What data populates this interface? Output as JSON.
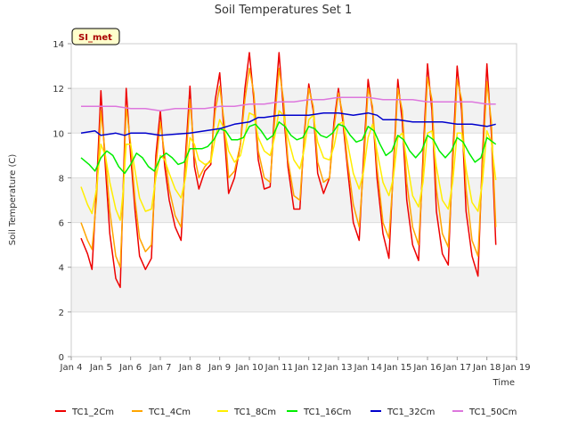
{
  "chart_data": {
    "type": "line",
    "title": "Soil Temperatures Set 1",
    "xlabel": "Time",
    "ylabel": "Soil Temperature (C)",
    "xlim": [
      4.0,
      19.0
    ],
    "ylim": [
      0,
      14
    ],
    "x_ticks": [
      4,
      5,
      6,
      7,
      8,
      9,
      10,
      11,
      12,
      13,
      14,
      15,
      16,
      17,
      18,
      19
    ],
    "x_tick_labels": [
      "Jan 4",
      "Jan 5",
      "Jan 6",
      "Jan 7",
      "Jan 8",
      "Jan 9",
      "Jan 10",
      "Jan 11",
      "Jan 12",
      "Jan 13",
      "Jan 14",
      "Jan 15",
      "Jan 16",
      "Jan 17",
      "Jan 18",
      "Jan 19"
    ],
    "y_ticks": [
      0,
      2,
      4,
      6,
      8,
      10,
      12,
      14
    ],
    "y_tick_labels": [
      "0",
      "2",
      "4",
      "6",
      "8",
      "10",
      "12",
      "14"
    ],
    "grid": "horizontal bands",
    "legend_placement": "bottom",
    "station_label": "SI_met",
    "series": [
      {
        "name": "TC1_2Cm",
        "color": "#ee0000",
        "x": [
          4.33,
          4.55,
          4.7,
          4.85,
          5.0,
          5.15,
          5.3,
          5.5,
          5.65,
          5.75,
          5.85,
          6.0,
          6.15,
          6.3,
          6.5,
          6.7,
          6.85,
          7.0,
          7.15,
          7.3,
          7.5,
          7.7,
          7.85,
          8.0,
          8.15,
          8.3,
          8.5,
          8.7,
          8.85,
          9.0,
          9.15,
          9.3,
          9.5,
          9.7,
          9.85,
          10.0,
          10.15,
          10.3,
          10.5,
          10.7,
          10.85,
          11.0,
          11.15,
          11.3,
          11.5,
          11.7,
          11.85,
          12.0,
          12.15,
          12.3,
          12.5,
          12.7,
          12.85,
          13.0,
          13.15,
          13.3,
          13.5,
          13.7,
          13.85,
          14.0,
          14.15,
          14.3,
          14.5,
          14.7,
          14.85,
          15.0,
          15.15,
          15.3,
          15.5,
          15.7,
          15.85,
          16.0,
          16.15,
          16.3,
          16.5,
          16.7,
          16.85,
          17.0,
          17.15,
          17.3,
          17.5,
          17.7,
          17.85,
          18.0,
          18.15,
          18.3
        ],
        "y": [
          5.3,
          4.6,
          3.9,
          7.5,
          11.9,
          8.5,
          5.5,
          3.5,
          3.1,
          7.5,
          12.0,
          9.0,
          6.5,
          4.5,
          3.9,
          4.4,
          9.0,
          11.0,
          8.5,
          7.0,
          5.8,
          5.2,
          9.0,
          12.1,
          8.5,
          7.5,
          8.3,
          8.6,
          11.5,
          12.7,
          10.0,
          7.3,
          8.0,
          9.5,
          12.0,
          13.6,
          11.5,
          8.8,
          7.5,
          7.6,
          11.0,
          13.6,
          11.0,
          8.5,
          6.6,
          6.6,
          10.0,
          12.2,
          11.0,
          8.2,
          7.3,
          8.0,
          10.5,
          12.0,
          10.5,
          8.5,
          6.0,
          5.2,
          9.0,
          12.4,
          11.0,
          8.0,
          5.5,
          4.4,
          8.5,
          12.4,
          10.5,
          7.0,
          5.0,
          4.3,
          9.0,
          13.1,
          11.0,
          6.5,
          4.6,
          4.1,
          9.0,
          13.0,
          11.0,
          6.5,
          4.5,
          3.6,
          9.0,
          13.1,
          10.0,
          5.0
        ]
      },
      {
        "name": "TC1_4Cm",
        "color": "#ffa500",
        "x": [
          4.33,
          4.55,
          4.7,
          4.85,
          5.0,
          5.15,
          5.3,
          5.5,
          5.65,
          5.75,
          5.85,
          6.0,
          6.15,
          6.3,
          6.5,
          6.7,
          6.85,
          7.0,
          7.15,
          7.3,
          7.5,
          7.7,
          7.85,
          8.0,
          8.15,
          8.3,
          8.5,
          8.7,
          8.85,
          9.0,
          9.15,
          9.3,
          9.5,
          9.7,
          9.85,
          10.0,
          10.15,
          10.3,
          10.5,
          10.7,
          10.85,
          11.0,
          11.15,
          11.3,
          11.5,
          11.7,
          11.85,
          12.0,
          12.15,
          12.3,
          12.5,
          12.7,
          12.85,
          13.0,
          13.15,
          13.3,
          13.5,
          13.7,
          13.85,
          14.0,
          14.15,
          14.3,
          14.5,
          14.7,
          14.85,
          15.0,
          15.15,
          15.3,
          15.5,
          15.7,
          15.85,
          16.0,
          16.15,
          16.3,
          16.5,
          16.7,
          16.85,
          17.0,
          17.15,
          17.3,
          17.5,
          17.7,
          17.85,
          18.0,
          18.15,
          18.3
        ],
        "y": [
          6.0,
          5.2,
          4.8,
          7.0,
          11.0,
          9.0,
          6.5,
          4.5,
          4.0,
          7.0,
          11.2,
          9.5,
          7.0,
          5.3,
          4.7,
          5.0,
          8.5,
          10.5,
          9.0,
          7.5,
          6.3,
          5.8,
          8.5,
          11.5,
          9.0,
          8.0,
          8.5,
          8.8,
          11.0,
          12.1,
          10.5,
          8.0,
          8.3,
          9.5,
          11.5,
          12.9,
          11.8,
          9.2,
          8.0,
          7.8,
          10.5,
          12.9,
          11.5,
          8.8,
          7.2,
          7.0,
          9.8,
          12.0,
          11.2,
          8.7,
          7.8,
          8.0,
          10.2,
          11.8,
          10.8,
          8.8,
          6.8,
          5.8,
          8.5,
          12.0,
          11.2,
          8.5,
          6.0,
          5.3,
          8.2,
          12.0,
          11.0,
          7.8,
          5.8,
          5.0,
          8.5,
          12.5,
          11.5,
          7.5,
          5.5,
          4.9,
          8.5,
          12.4,
          11.5,
          7.5,
          5.2,
          4.5,
          8.5,
          12.3,
          10.5,
          5.8
        ]
      },
      {
        "name": "TC1_8Cm",
        "color": "#ffee00",
        "x": [
          4.33,
          4.55,
          4.7,
          4.85,
          5.0,
          5.15,
          5.3,
          5.5,
          5.65,
          5.75,
          5.85,
          6.0,
          6.15,
          6.3,
          6.5,
          6.7,
          6.85,
          7.0,
          7.15,
          7.3,
          7.5,
          7.7,
          7.85,
          8.0,
          8.15,
          8.3,
          8.5,
          8.7,
          8.85,
          9.0,
          9.15,
          9.3,
          9.5,
          9.7,
          9.85,
          10.0,
          10.15,
          10.3,
          10.5,
          10.7,
          10.85,
          11.0,
          11.15,
          11.3,
          11.5,
          11.7,
          11.85,
          12.0,
          12.15,
          12.3,
          12.5,
          12.7,
          12.85,
          13.0,
          13.15,
          13.3,
          13.5,
          13.7,
          13.85,
          14.0,
          14.15,
          14.3,
          14.5,
          14.7,
          14.85,
          15.0,
          15.15,
          15.3,
          15.5,
          15.7,
          15.85,
          16.0,
          16.15,
          16.3,
          16.5,
          16.7,
          16.85,
          17.0,
          17.15,
          17.3,
          17.5,
          17.7,
          17.85,
          18.0,
          18.15,
          18.3
        ],
        "y": [
          7.6,
          6.8,
          6.4,
          7.5,
          9.5,
          9.0,
          7.8,
          6.6,
          6.1,
          7.4,
          9.5,
          9.5,
          8.3,
          7.1,
          6.5,
          6.6,
          8.0,
          9.0,
          8.8,
          8.2,
          7.5,
          7.1,
          8.0,
          9.8,
          9.5,
          8.8,
          8.6,
          8.7,
          9.8,
          10.6,
          10.2,
          9.2,
          8.7,
          9.0,
          9.9,
          10.9,
          10.8,
          9.8,
          9.2,
          9.0,
          9.8,
          11.0,
          10.8,
          9.8,
          8.8,
          8.4,
          9.3,
          10.6,
          10.8,
          9.6,
          8.9,
          8.8,
          9.4,
          10.4,
          10.5,
          9.6,
          8.2,
          7.5,
          8.3,
          9.8,
          10.4,
          9.2,
          7.8,
          7.2,
          8.0,
          9.8,
          10.0,
          8.8,
          7.2,
          6.7,
          7.8,
          10.0,
          10.1,
          8.5,
          7.0,
          6.6,
          7.8,
          10.0,
          10.0,
          8.4,
          6.9,
          6.5,
          7.8,
          10.1,
          9.6,
          7.9
        ]
      },
      {
        "name": "TC1_16Cm",
        "color": "#00ee00",
        "x": [
          4.33,
          4.6,
          4.8,
          5.0,
          5.2,
          5.4,
          5.6,
          5.8,
          6.0,
          6.2,
          6.4,
          6.6,
          6.8,
          7.0,
          7.2,
          7.4,
          7.6,
          7.8,
          8.0,
          8.2,
          8.4,
          8.6,
          8.8,
          9.0,
          9.2,
          9.4,
          9.6,
          9.8,
          10.0,
          10.2,
          10.4,
          10.6,
          10.8,
          11.0,
          11.2,
          11.4,
          11.6,
          11.8,
          12.0,
          12.2,
          12.4,
          12.6,
          12.8,
          13.0,
          13.2,
          13.4,
          13.6,
          13.8,
          14.0,
          14.2,
          14.4,
          14.6,
          14.8,
          15.0,
          15.2,
          15.4,
          15.6,
          15.8,
          16.0,
          16.2,
          16.4,
          16.6,
          16.8,
          17.0,
          17.2,
          17.4,
          17.6,
          17.8,
          18.0,
          18.2,
          18.3
        ],
        "y": [
          8.9,
          8.6,
          8.3,
          8.9,
          9.2,
          9.0,
          8.5,
          8.2,
          8.6,
          9.1,
          8.9,
          8.5,
          8.3,
          8.9,
          9.1,
          8.9,
          8.6,
          8.7,
          9.3,
          9.3,
          9.3,
          9.4,
          9.7,
          10.2,
          10.1,
          9.7,
          9.7,
          9.8,
          10.3,
          10.4,
          10.1,
          9.7,
          9.9,
          10.5,
          10.3,
          9.9,
          9.7,
          9.8,
          10.3,
          10.2,
          9.9,
          9.8,
          10.0,
          10.4,
          10.3,
          9.9,
          9.6,
          9.7,
          10.3,
          10.1,
          9.5,
          9.0,
          9.2,
          9.9,
          9.7,
          9.2,
          8.9,
          9.2,
          9.9,
          9.7,
          9.2,
          8.9,
          9.2,
          9.8,
          9.6,
          9.1,
          8.7,
          8.9,
          9.8,
          9.6,
          9.5
        ]
      },
      {
        "name": "TC1_32Cm",
        "color": "#0000cc",
        "x": [
          4.33,
          4.8,
          5.0,
          5.5,
          5.8,
          6.0,
          6.5,
          7.0,
          7.5,
          8.0,
          8.5,
          9.0,
          9.5,
          10.0,
          10.3,
          10.5,
          11.0,
          11.5,
          12.0,
          12.5,
          13.0,
          13.5,
          14.0,
          14.3,
          14.5,
          15.0,
          15.5,
          16.0,
          16.5,
          17.0,
          17.5,
          18.0,
          18.3
        ],
        "y": [
          10.0,
          10.1,
          9.9,
          10.0,
          9.9,
          10.0,
          10.0,
          9.9,
          9.95,
          10.0,
          10.1,
          10.2,
          10.4,
          10.5,
          10.7,
          10.7,
          10.8,
          10.8,
          10.8,
          10.9,
          10.9,
          10.8,
          10.9,
          10.8,
          10.6,
          10.6,
          10.5,
          10.5,
          10.5,
          10.4,
          10.4,
          10.3,
          10.4
        ]
      },
      {
        "name": "TC1_50Cm",
        "color": "#dd77dd",
        "x": [
          4.33,
          5.0,
          5.5,
          6.0,
          6.5,
          7.0,
          7.5,
          8.0,
          8.5,
          9.0,
          9.5,
          10.0,
          10.5,
          11.0,
          11.5,
          12.0,
          12.5,
          13.0,
          13.5,
          14.0,
          14.5,
          15.0,
          15.5,
          16.0,
          16.5,
          17.0,
          17.5,
          18.0,
          18.3
        ],
        "y": [
          11.2,
          11.2,
          11.2,
          11.1,
          11.1,
          11.0,
          11.1,
          11.1,
          11.1,
          11.2,
          11.2,
          11.3,
          11.3,
          11.4,
          11.4,
          11.5,
          11.5,
          11.6,
          11.6,
          11.6,
          11.5,
          11.5,
          11.5,
          11.4,
          11.4,
          11.4,
          11.4,
          11.3,
          11.3
        ]
      }
    ]
  }
}
